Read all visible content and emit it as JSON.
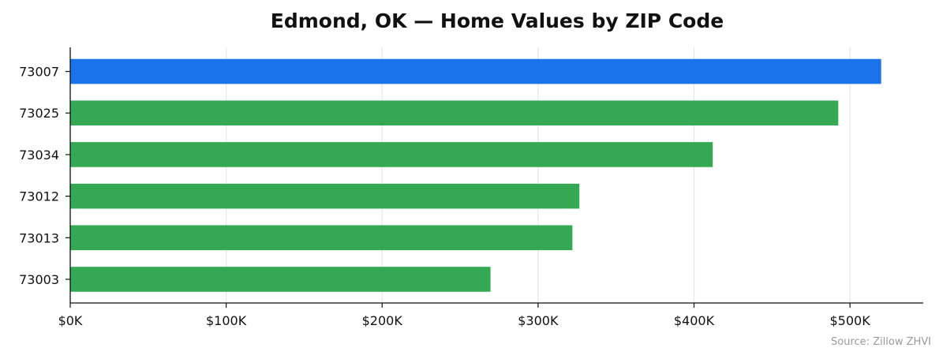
{
  "chart_data": {
    "type": "bar",
    "orientation": "horizontal",
    "title": "Edmond, OK — Home Values by ZIP Code",
    "source": "Source: Zillow ZHVI",
    "categories": [
      "73007",
      "73025",
      "73034",
      "73012",
      "73013",
      "73003"
    ],
    "values": [
      520000,
      492500,
      412000,
      326500,
      322000,
      269500
    ],
    "highlight_index": 0,
    "colors": {
      "highlight": "#1a73e8",
      "default": "#34a853",
      "grid": "#e6e6e6",
      "axis": "#111111"
    },
    "xticks": [
      {
        "value": 0,
        "label": "$0K"
      },
      {
        "value": 100000,
        "label": "$100K"
      },
      {
        "value": 200000,
        "label": "$200K"
      },
      {
        "value": 300000,
        "label": "$300K"
      },
      {
        "value": 400000,
        "label": "$400K"
      },
      {
        "value": 500000,
        "label": "$500K"
      }
    ],
    "xlim": [
      0,
      547000
    ],
    "xlabel": "",
    "ylabel": "",
    "grid": "vertical",
    "legend": "none"
  }
}
